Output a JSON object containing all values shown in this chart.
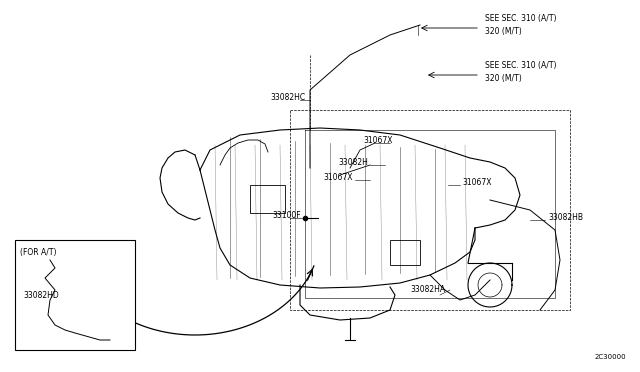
{
  "bg_color": "#ffffff",
  "line_color": "#000000",
  "fig_width": 6.4,
  "fig_height": 3.72,
  "diagram_code": "2C30000",
  "labels": {
    "see_sec1": "SEE SEC. 310 (A/T)\n320 (M/T)",
    "see_sec2": "SEE SEC. 310 (A/T)\n320 (M/T)",
    "33082HC": "33082HC",
    "31067X_1": "31067X",
    "33082H": "33082H",
    "31067X_2": "31067X",
    "31067X_3": "31067X",
    "33100F": "33100F",
    "33082HB": "33082HB",
    "33082HA": "33082HA",
    "for_at": "(FOR A/T)",
    "33082HD": "33082HD"
  },
  "arrow_color": "#000000",
  "thin_line": 0.5,
  "medium_line": 0.8
}
